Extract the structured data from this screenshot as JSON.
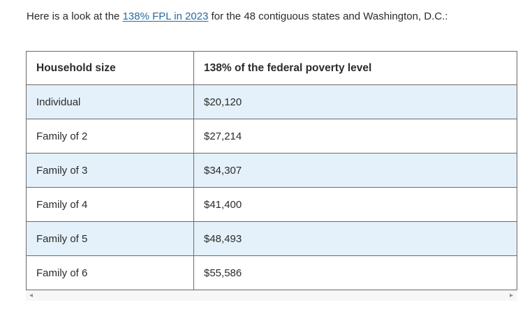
{
  "intro": {
    "before_link": "Here is a look at the ",
    "link_text": "138% FPL in 2023",
    "after_link": " for the 48 contiguous states and Washington, D.C.:"
  },
  "table": {
    "headers": [
      "Household size",
      "138% of the federal poverty level"
    ],
    "rows": [
      {
        "label": "Individual",
        "value": "$20,120"
      },
      {
        "label": "Family of 2",
        "value": "$27,214"
      },
      {
        "label": "Family of 3",
        "value": "$34,307"
      },
      {
        "label": "Family of 4",
        "value": "$41,400"
      },
      {
        "label": "Family of 5",
        "value": "$48,493"
      },
      {
        "label": "Family of 6",
        "value": "$55,586"
      }
    ]
  },
  "scrollbar": {
    "left_arrow": "◂",
    "right_arrow": "▸"
  },
  "colors": {
    "link": "#276a9e",
    "alt_row": "#e5f1fa",
    "border": "#6a6a6a",
    "text": "#2b2b2b",
    "scroll_track": "#f7f7f7",
    "scroll_arrow": "#8f8f8f"
  }
}
